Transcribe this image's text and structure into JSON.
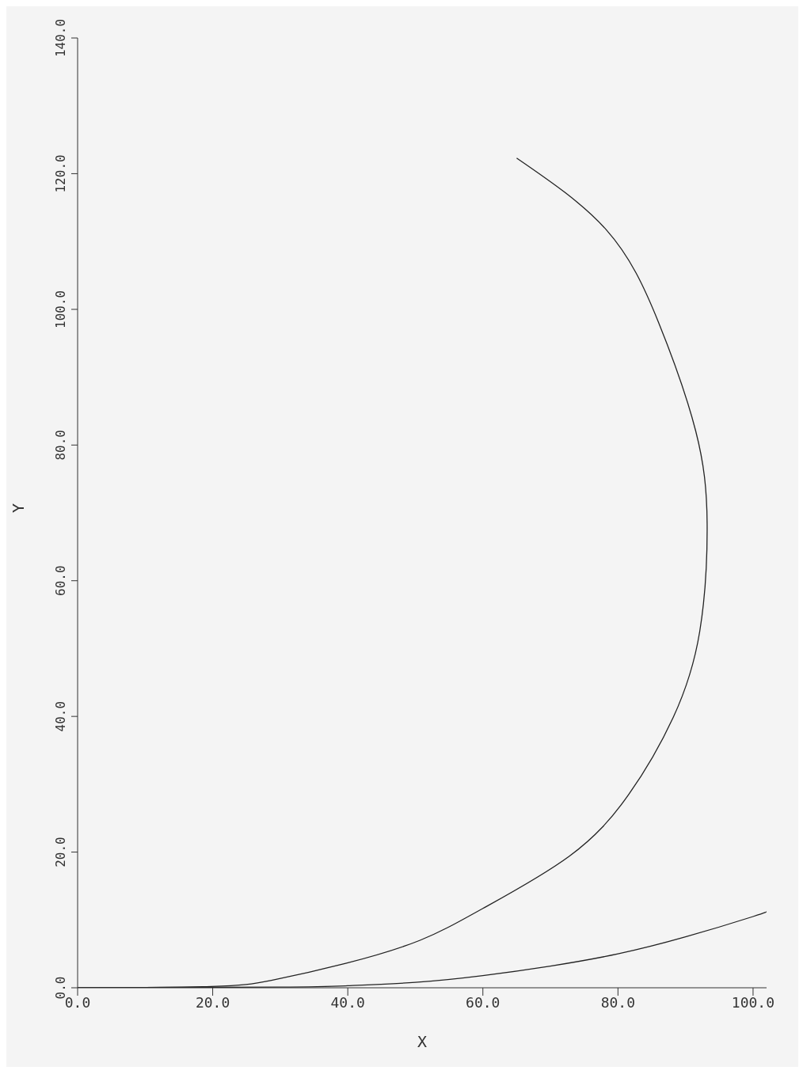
{
  "chart_data": {
    "type": "line",
    "xlabel": "X",
    "ylabel": "Y",
    "xlim": [
      0,
      102
    ],
    "ylim": [
      0,
      140
    ],
    "xticks": [
      {
        "value": 0,
        "label": "0.0"
      },
      {
        "value": 20,
        "label": "20.0"
      },
      {
        "value": 40,
        "label": "40.0"
      },
      {
        "value": 60,
        "label": "60.0"
      },
      {
        "value": 80,
        "label": "80.0"
      },
      {
        "value": 100,
        "label": "100.0"
      }
    ],
    "yticks": [
      {
        "value": 0,
        "label": "0.0"
      },
      {
        "value": 20,
        "label": "20.0"
      },
      {
        "value": 40,
        "label": "40.0"
      },
      {
        "value": 60,
        "label": "60.0"
      },
      {
        "value": 80,
        "label": "80.0"
      },
      {
        "value": 100,
        "label": "100.0"
      },
      {
        "value": 120,
        "label": "120.0"
      },
      {
        "value": 140,
        "label": "140.0"
      }
    ],
    "marker": "none",
    "line_style": "solid",
    "series": [
      {
        "color": "#222222",
        "x": [
          0,
          19.8,
          28.7,
          39.7,
          50.7,
          60,
          72.8,
          81.6,
          88.2,
          92.1,
          93.2,
          91.5,
          86,
          78.3,
          65
        ],
        "values": [
          0,
          0.2,
          1.1,
          3.6,
          7,
          11.7,
          19.4,
          28.5,
          39.9,
          52.5,
          68.4,
          82.1,
          98.1,
          111.7,
          122.3
        ]
      },
      {
        "color": "#222222",
        "x": [
          0,
          30,
          40,
          50,
          60,
          70,
          80,
          90,
          100,
          101.9
        ],
        "values": [
          0,
          0.1,
          0.3,
          0.8,
          1.8,
          3.2,
          5,
          7.5,
          10.5,
          11.2
        ]
      }
    ]
  }
}
